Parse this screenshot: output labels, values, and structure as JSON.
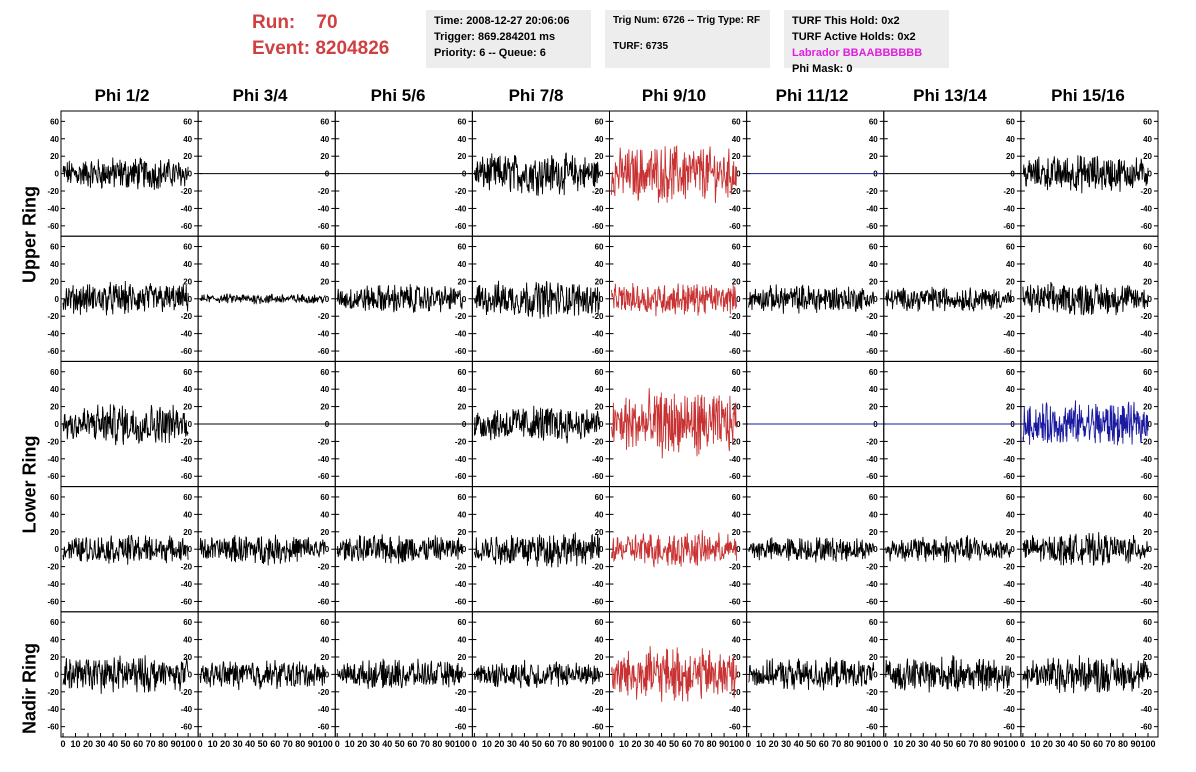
{
  "header": {
    "run_label": "Run:",
    "run_value": "70",
    "event_label": "Event:",
    "event_value": "8204826",
    "time": "Time: 2008-12-27 20:06:06",
    "trigger": "Trigger: 869.284201 ms",
    "priority": "Priority: 6 -- Queue: 6",
    "trig_num": "Trig Num: 6726 -- Trig Type: RF",
    "turf": "TURF: 6735",
    "turf_hold": "TURF This Hold: 0x2",
    "turf_active": "TURF Active Holds: 0x2",
    "labrador": "Labrador BBAABBBBBB",
    "phi_mask": "Phi Mask: 0"
  },
  "colors": {
    "normal": "#000000",
    "triggered": "#c83232",
    "masked": "#1a1aa0",
    "run_text": "#d04040",
    "labrador": "#e01ee0"
  },
  "phi_labels": [
    "Phi 1/2",
    "Phi 3/4",
    "Phi 5/6",
    "Phi 7/8",
    "Phi 9/10",
    "Phi 11/12",
    "Phi 13/14",
    "Phi 15/16"
  ],
  "ring_labels": [
    "Upper Ring",
    "Lower Ring",
    "Nadir Ring"
  ],
  "chart_data": {
    "type": "line",
    "description_axis": {
      "xlim": [
        0,
        100
      ],
      "ylim": [
        -65,
        65
      ]
    },
    "y_ticks": [
      "60",
      "40",
      "20",
      "0",
      "-20",
      "-40",
      "-60"
    ],
    "x_ticks": [
      "0",
      "10",
      "20",
      "30",
      "40",
      "50",
      "60",
      "70",
      "80",
      "90",
      "100"
    ],
    "panels": [
      [
        "normal:16",
        "flat",
        "flat",
        "normal:20",
        "triggered:28",
        "flat-masked",
        "flat",
        "normal:18"
      ],
      [
        "normal:16",
        "normal:5",
        "normal:14",
        "normal:18",
        "triggered:16",
        "normal:14",
        "normal:12",
        "normal:16"
      ],
      [
        "normal:20",
        "flat",
        "flat",
        "normal:18",
        "triggered:32",
        "flat-masked",
        "flat-masked",
        "masked:22"
      ],
      [
        "normal:14",
        "normal:14",
        "normal:14",
        "normal:17",
        "triggered:17",
        "normal:12",
        "normal:13",
        "normal:15"
      ],
      [
        "normal:18",
        "normal:14",
        "normal:14",
        "normal:13",
        "triggered:26",
        "normal:15",
        "normal:17",
        "normal:18"
      ]
    ]
  }
}
